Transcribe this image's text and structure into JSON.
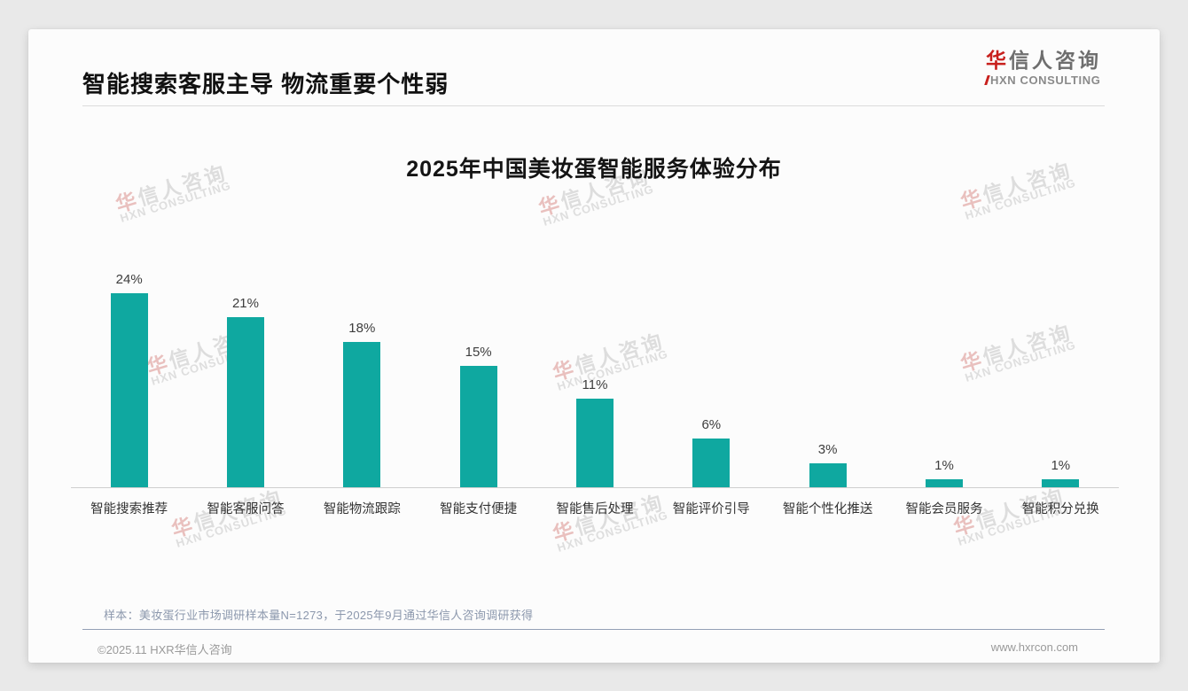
{
  "slide": {
    "title": "智能搜索客服主导 物流重要个性弱",
    "logo": {
      "cn_first": "华",
      "cn_rest": "信人咨询",
      "en": "HXN CONSULTING"
    },
    "footnote": "样本：美妆蛋行业市场调研样本量N=1273，于2025年9月通过华信人咨询调研获得",
    "footer": {
      "copyright": "©2025.11 HXR华信人咨询",
      "website": "www.hxrcon.com"
    },
    "watermark": {
      "cn_first": "华",
      "cn_rest": "信人咨询",
      "en": "HXN CONSULTING"
    }
  },
  "chart_data": {
    "type": "bar",
    "title": "2025年中国美妆蛋智能服务体验分布",
    "categories": [
      "智能搜索推荐",
      "智能客服问答",
      "智能物流跟踪",
      "智能支付便捷",
      "智能售后处理",
      "智能评价引导",
      "智能个性化推送",
      "智能会员服务",
      "智能积分兑换"
    ],
    "values": [
      24,
      21,
      18,
      15,
      11,
      6,
      3,
      1,
      1
    ],
    "value_labels": [
      "24%",
      "21%",
      "18%",
      "15%",
      "11%",
      "6%",
      "3%",
      "1%",
      "1%"
    ],
    "unit": "%",
    "ylim": [
      0,
      26
    ],
    "bar_color": "#0fa8a0",
    "xlabel": "",
    "ylabel": "",
    "grid": false,
    "legend": false
  }
}
